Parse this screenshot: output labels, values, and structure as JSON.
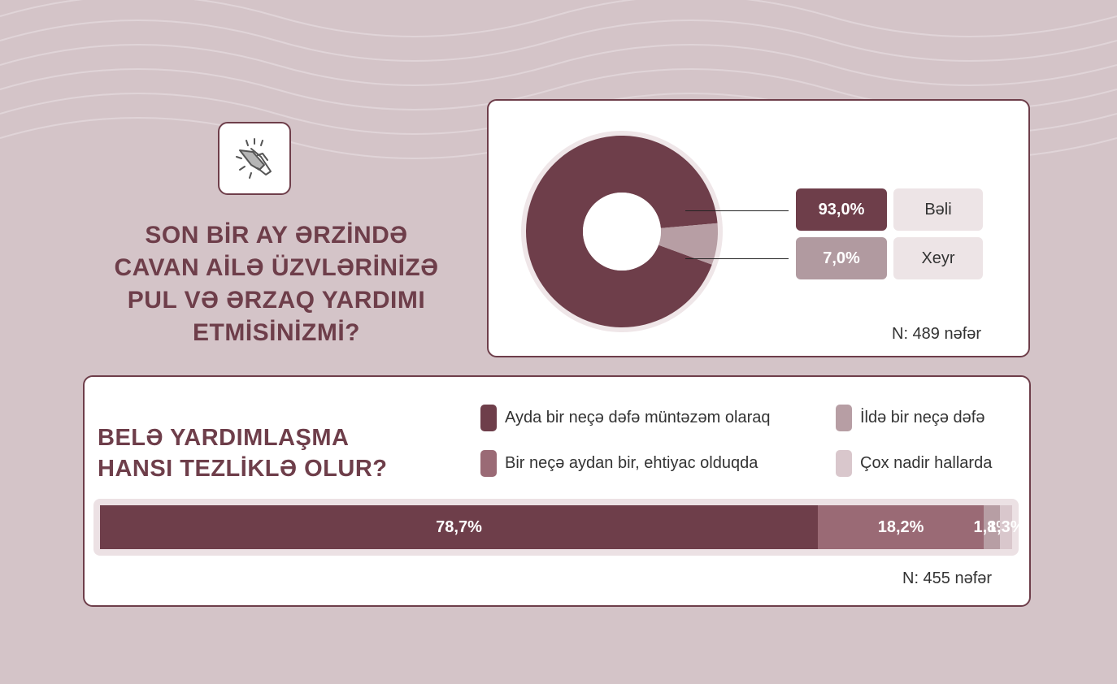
{
  "title": "SON BİR AY ƏRZİNDƏ\nCAVAN AİLƏ ÜZVLƏRİNİZƏ\nPUL VƏ ƏRZAQ YARDIMI\nETMİSİNİZMİ?",
  "icon": "helping-hands-icon",
  "colors": {
    "dark": "#6e3e4a",
    "medium": "#9a6a75",
    "light": "#b79ea4",
    "pale": "#d9c7cc"
  },
  "pie": {
    "n_label": "N: 489 nəfər",
    "items": [
      {
        "value_label": "93,0%",
        "category": "Bəli"
      },
      {
        "value_label": "7,0%",
        "category": "Xeyr"
      }
    ]
  },
  "frequency": {
    "question": "BELƏ YARDIMLAŞMA\nHANSI TEZLİKLƏ OLUR?",
    "legend": [
      "Ayda bir neçə dəfə müntəzəm olaraq",
      "Bir neçə aydan bir, ehtiyac olduqda",
      "İldə bir neçə dəfə",
      "Çox nadir hallarda"
    ],
    "value_labels": [
      "78,7%",
      "18,2%",
      "1,8%",
      "1,3%"
    ],
    "n_label": "N: 455 nəfər"
  },
  "chart_data": [
    {
      "type": "pie",
      "categories": [
        "Bəli",
        "Xeyr"
      ],
      "values": [
        93.0,
        7.0
      ]
    },
    {
      "type": "bar",
      "categories": [
        "Ayda bir neçə dəfə müntəzəm olaraq",
        "Bir neçə aydan bir, ehtiyac olduqda",
        "İldə bir neçə dəfə",
        "Çox nadir hallarda"
      ],
      "values": [
        78.7,
        18.2,
        1.8,
        1.3
      ]
    }
  ]
}
